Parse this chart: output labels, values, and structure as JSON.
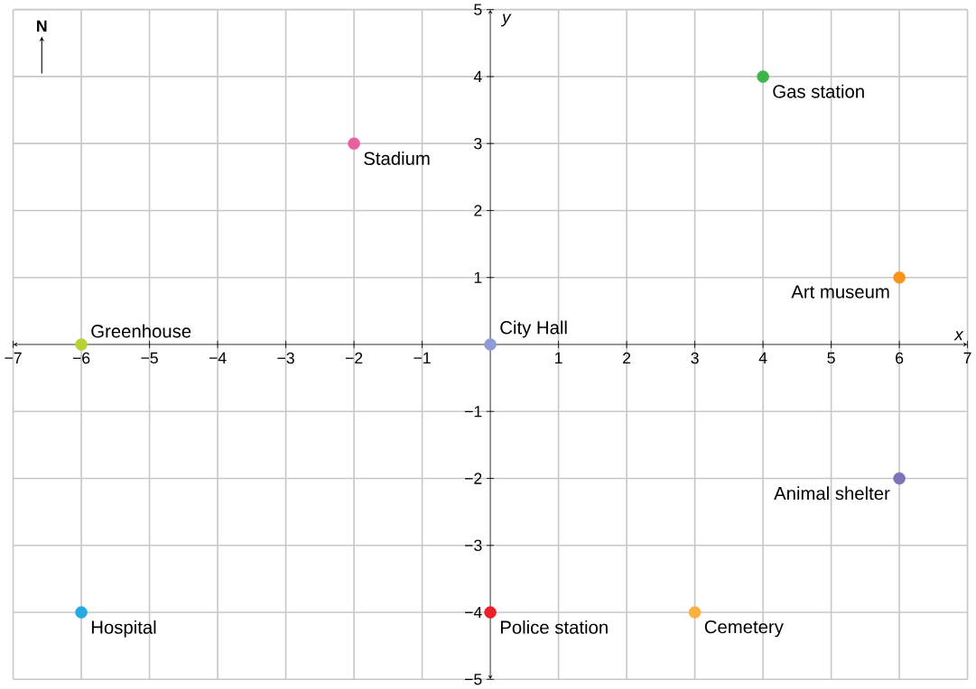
{
  "chart_data": {
    "type": "scatter",
    "xlabel": "x",
    "ylabel": "y",
    "xlim": [
      -7,
      7
    ],
    "ylim": [
      -5,
      5
    ],
    "xticks": [
      {
        "value": -7,
        "label": "−7"
      },
      {
        "value": -6,
        "label": "−6"
      },
      {
        "value": -5,
        "label": "−5"
      },
      {
        "value": -4,
        "label": "−4"
      },
      {
        "value": -3,
        "label": "−3"
      },
      {
        "value": -2,
        "label": "−2"
      },
      {
        "value": -1,
        "label": "−1"
      },
      {
        "value": 0,
        "label": null
      },
      1,
      2,
      3,
      4,
      5,
      6,
      7
    ],
    "yticks": [
      {
        "value": -5,
        "label": "−5"
      },
      {
        "value": -4,
        "label": "−4"
      },
      {
        "value": -3,
        "label": "−3"
      },
      {
        "value": -2,
        "label": "−2"
      },
      {
        "value": -1,
        "label": "−1"
      },
      {
        "value": 0,
        "label": null
      },
      1,
      2,
      3,
      4,
      5
    ],
    "grid": true,
    "marker": "circle",
    "annotations": [
      "N"
    ],
    "series": [
      {
        "name": "Greenhouse",
        "color": "#b5d334",
        "x": [
          -6
        ],
        "values": [
          0
        ]
      },
      {
        "name": "Stadium",
        "color": "#e8609e",
        "x": [
          -2
        ],
        "values": [
          3
        ]
      },
      {
        "name": "Gas station",
        "color": "#3cb54a",
        "x": [
          4
        ],
        "values": [
          4
        ]
      },
      {
        "name": "Art museum",
        "color": "#f7941d",
        "x": [
          6
        ],
        "values": [
          1
        ]
      },
      {
        "name": "City Hall",
        "color": "#8e9bd6",
        "x": [
          0
        ],
        "values": [
          0
        ]
      },
      {
        "name": "Animal shelter",
        "color": "#8070b8",
        "x": [
          6
        ],
        "values": [
          -2
        ]
      },
      {
        "name": "Hospital",
        "color": "#27a9e1",
        "x": [
          -6
        ],
        "values": [
          -4
        ]
      },
      {
        "name": "Police station",
        "color": "#e8202a",
        "x": [
          0
        ],
        "values": [
          -4
        ]
      },
      {
        "name": "Cemetery",
        "color": "#fbb040",
        "x": [
          3
        ],
        "values": [
          -4
        ]
      }
    ]
  }
}
